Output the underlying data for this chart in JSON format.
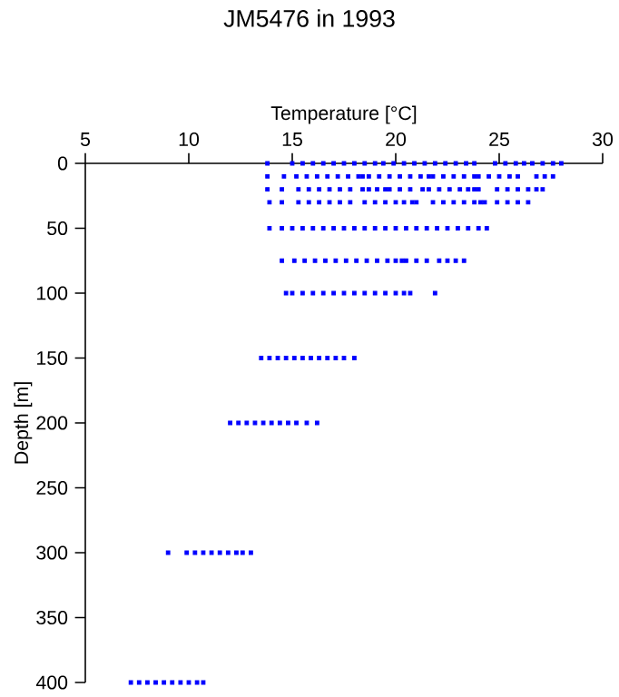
{
  "chart_data": {
    "type": "scatter",
    "title": "JM5476 in 1993",
    "xlabel": "Temperature [°C]",
    "ylabel": "Depth [m]",
    "xlim": [
      5,
      30
    ],
    "xticks": [
      5,
      10,
      15,
      20,
      25,
      30
    ],
    "ylim": [
      400,
      0
    ],
    "yticks": [
      0,
      50,
      100,
      150,
      200,
      250,
      300,
      350,
      400
    ],
    "marker": "square",
    "series": [
      {
        "color": "#0000ff",
        "x": [
          13.8,
          15.0,
          15.5,
          16.0,
          16.5,
          17.0,
          17.5,
          18.0,
          18.5,
          19.0,
          19.4,
          19.9,
          20.4,
          20.9,
          21.4,
          21.9,
          22.4,
          22.9,
          23.4,
          23.8,
          24.8,
          25.3,
          25.8,
          26.2,
          26.6,
          27.1,
          27.6,
          28.0
        ],
        "values": [
          0,
          0,
          0,
          0,
          0,
          0,
          0,
          0,
          0,
          0,
          0,
          0,
          0,
          0,
          0,
          0,
          0,
          0,
          0,
          0,
          0,
          0,
          0,
          0,
          0,
          0,
          0,
          0
        ]
      },
      {
        "color": "#0000ff",
        "x": [
          13.8,
          14.6,
          15.2,
          15.7,
          16.2,
          16.7,
          17.2,
          17.7,
          18.2,
          18.4,
          18.7,
          19.2,
          19.7,
          20.2,
          20.7,
          21.2,
          21.6,
          21.8,
          22.3,
          22.8,
          23.3,
          23.8,
          24.0,
          24.5,
          25.0,
          25.5,
          25.9,
          26.8,
          27.2,
          27.6
        ],
        "values": [
          10,
          10,
          10,
          10,
          10,
          10,
          10,
          10,
          10,
          10,
          10,
          10,
          10,
          10,
          10,
          10,
          10,
          10,
          10,
          10,
          10,
          10,
          10,
          10,
          10,
          10,
          10,
          10,
          10,
          10
        ]
      },
      {
        "color": "#0000ff",
        "x": [
          13.8,
          14.5,
          15.3,
          15.8,
          16.3,
          16.8,
          17.3,
          17.8,
          18.4,
          18.7,
          19.1,
          19.5,
          19.7,
          20.2,
          20.7,
          21.3,
          21.6,
          22.1,
          22.6,
          23.1,
          23.5,
          23.8,
          24.0,
          24.9,
          25.4,
          25.9,
          26.4,
          26.8,
          27.1
        ],
        "values": [
          20,
          20,
          20,
          20,
          20,
          20,
          20,
          20,
          20,
          20,
          20,
          20,
          20,
          20,
          20,
          20,
          20,
          20,
          20,
          20,
          20,
          20,
          20,
          20,
          20,
          20,
          20,
          20,
          20
        ]
      },
      {
        "color": "#0000ff",
        "x": [
          13.9,
          14.5,
          15.3,
          15.8,
          16.3,
          16.8,
          17.3,
          17.8,
          18.5,
          19.0,
          19.5,
          20.0,
          20.4,
          20.8,
          21.0,
          21.8,
          22.3,
          22.8,
          23.3,
          23.8,
          24.1,
          24.3,
          24.9,
          25.4,
          25.9,
          26.4
        ],
        "values": [
          30,
          30,
          30,
          30,
          30,
          30,
          30,
          30,
          30,
          30,
          30,
          30,
          30,
          30,
          30,
          30,
          30,
          30,
          30,
          30,
          30,
          30,
          30,
          30,
          30,
          30
        ]
      },
      {
        "color": "#0000ff",
        "x": [
          13.9,
          14.5,
          15.0,
          15.5,
          16.0,
          16.5,
          17.0,
          17.5,
          18.0,
          18.5,
          19.0,
          19.5,
          20.0,
          20.5,
          21.0,
          21.5,
          22.0,
          22.5,
          23.0,
          23.5,
          24.0,
          24.4
        ],
        "values": [
          50,
          50,
          50,
          50,
          50,
          50,
          50,
          50,
          50,
          50,
          50,
          50,
          50,
          50,
          50,
          50,
          50,
          50,
          50,
          50,
          50,
          50
        ]
      },
      {
        "color": "#0000ff",
        "x": [
          14.5,
          15.1,
          15.6,
          16.1,
          16.6,
          17.1,
          17.6,
          18.1,
          18.6,
          19.1,
          19.6,
          20.0,
          20.3,
          20.5,
          21.0,
          21.5,
          22.1,
          22.5,
          22.9,
          23.3
        ],
        "values": [
          75,
          75,
          75,
          75,
          75,
          75,
          75,
          75,
          75,
          75,
          75,
          75,
          75,
          75,
          75,
          75,
          75,
          75,
          75,
          75
        ]
      },
      {
        "color": "#0000ff",
        "x": [
          14.7,
          15.0,
          15.5,
          16.0,
          16.5,
          17.0,
          17.5,
          18.0,
          18.5,
          19.0,
          19.5,
          20.0,
          20.4,
          20.7,
          21.9
        ],
        "values": [
          100,
          100,
          100,
          100,
          100,
          100,
          100,
          100,
          100,
          100,
          100,
          100,
          100,
          100,
          100
        ]
      },
      {
        "color": "#0000ff",
        "x": [
          13.5,
          13.9,
          14.3,
          14.7,
          15.1,
          15.5,
          15.9,
          16.3,
          16.7,
          17.1,
          17.5,
          18.0
        ],
        "values": [
          150,
          150,
          150,
          150,
          150,
          150,
          150,
          150,
          150,
          150,
          150,
          150
        ]
      },
      {
        "color": "#0000ff",
        "x": [
          12.0,
          12.4,
          12.8,
          13.2,
          13.6,
          14.0,
          14.4,
          14.8,
          15.2,
          15.7,
          16.2
        ],
        "values": [
          200,
          200,
          200,
          200,
          200,
          200,
          200,
          200,
          200,
          200,
          200
        ]
      },
      {
        "color": "#0000ff",
        "x": [
          9.0,
          9.9,
          10.3,
          10.7,
          11.1,
          11.5,
          11.9,
          12.3,
          12.6,
          13.0
        ],
        "values": [
          300,
          300,
          300,
          300,
          300,
          300,
          300,
          300,
          300,
          300
        ]
      },
      {
        "color": "#0000ff",
        "x": [
          7.2,
          7.6,
          8.0,
          8.4,
          8.8,
          9.2,
          9.6,
          10.0,
          10.4,
          10.7
        ],
        "values": [
          400,
          400,
          400,
          400,
          400,
          400,
          400,
          400,
          400,
          400
        ]
      }
    ]
  }
}
